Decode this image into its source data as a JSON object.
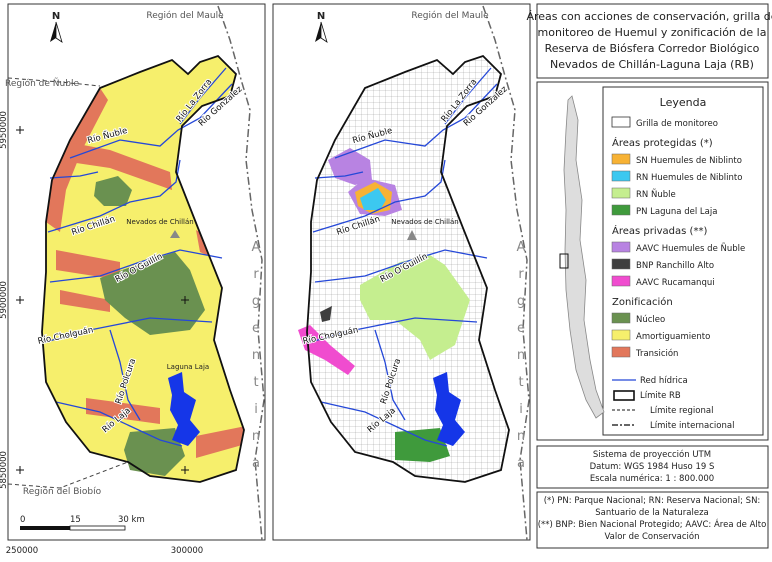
{
  "title": [
    "Áreas con acciones de conservación, grilla de",
    "monitoreo de Huemul y zonificación de la",
    "Reserva de Biósfera Corredor Biológico",
    "Nevados de Chillán-Laguna Laja (RB)"
  ],
  "maps": [
    {
      "region_labels": [
        "Región del Maule",
        "Región de Ñuble",
        "Región del Biobío"
      ],
      "river_labels": [
        "Río Ñuble",
        "Río La Zorra",
        "Río Gonzalez",
        "Río Chillán",
        "Río O'Guillín",
        "Río Cholguán",
        "Río Polcura",
        "Río Laja"
      ],
      "places": [
        "Nevados de Chillán",
        "Laguna Laja"
      ],
      "country": "Argentina",
      "northing_labels": [
        "5950000",
        "5900000",
        "5850000"
      ],
      "easting_labels": [
        "250000",
        "300000"
      ],
      "scale_bar": [
        "0",
        "15",
        "30 km"
      ]
    },
    {
      "region_labels": [
        "Región del Maule"
      ],
      "river_labels": [
        "Río Ñuble",
        "Río La Zorra",
        "Río Gonzalez",
        "Río Chillán",
        "Río O'Guillín",
        "Río Cholguán",
        "Río Polcura",
        "Río Laja"
      ],
      "places": [
        "Nevados de Chillán"
      ],
      "country": "Argentina"
    }
  ],
  "legend": {
    "title": "Leyenda",
    "grid": "Grilla de monitoreo",
    "groups": [
      {
        "title": "Áreas protegidas (*)",
        "items": [
          {
            "label": "SN Huemules de Niblinto",
            "color": "#f7b234"
          },
          {
            "label": "RN Huemules de Niblinto",
            "color": "#3cc8f0"
          },
          {
            "label": "RN Ñuble",
            "color": "#c5ee8f"
          },
          {
            "label": "PN Laguna del Laja",
            "color": "#3f9a3c"
          }
        ]
      },
      {
        "title": "Áreas privadas (**)",
        "items": [
          {
            "label": "AAVC Huemules de Ñuble",
            "color": "#b883e2"
          },
          {
            "label": "BNP Ranchillo Alto",
            "color": "#3e3e3e"
          },
          {
            "label": "AAVC Rucamanqui",
            "color": "#f04ccf"
          }
        ]
      },
      {
        "title": "Zonificación",
        "items": [
          {
            "label": "Núcleo",
            "color": "#6a9150"
          },
          {
            "label": "Amortiguamiento",
            "color": "#f6ef6c"
          },
          {
            "label": "Transición",
            "color": "#e2775b"
          }
        ]
      }
    ],
    "lines": [
      {
        "label": "Red hídrica",
        "color": "#2548d8",
        "style": "solid"
      },
      {
        "label": "Límite RB",
        "color": "#111111",
        "style": "box"
      },
      {
        "label": "Límite regional",
        "color": "#444444",
        "style": "dashed"
      },
      {
        "label": "Límite internacional",
        "color": "#666666",
        "style": "dashdot"
      }
    ]
  },
  "projection": [
    "Sistema de proyección UTM",
    "Datum: WGS 1984 Huso 19 S",
    "Escala numérica: 1 : 800.000"
  ],
  "notes": [
    "(*) PN: Parque Nacional; RN: Reserva Nacional; SN:",
    "Santuario de la Naturaleza",
    "(**) BNP: Bien Nacional Protegido; AAVC: Área de Alto",
    "Valor de Conservación"
  ]
}
